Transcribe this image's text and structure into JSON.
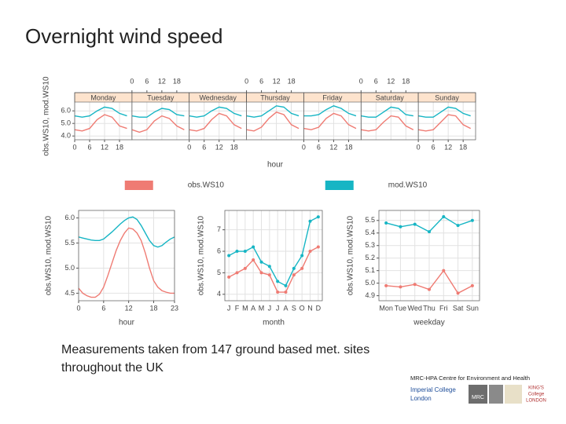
{
  "slide": {
    "title": "Overnight wind speed",
    "caption": [
      "Measurements taken from 147 ground based met. sites",
      "throughout the UK"
    ],
    "credit": "MRC-HPA Centre for Environment and Health",
    "imperial": [
      "Imperial College",
      "London"
    ],
    "mrc": "MRC",
    "kings": [
      "KING'S",
      "College",
      "LONDON"
    ]
  },
  "chart_data": [
    {
      "type": "line",
      "facets": [
        "Monday",
        "Tuesday",
        "Wednesday",
        "Thursday",
        "Friday",
        "Saturday",
        "Sunday"
      ],
      "strip_color": "#fde3cd",
      "x_label": "hour",
      "y_label": "obs.WS10, mod.WS10",
      "x": [
        0,
        3,
        6,
        9,
        12,
        15,
        18,
        21
      ],
      "xlim": [
        0,
        23
      ],
      "xticks": [
        0,
        6,
        12,
        18
      ],
      "ylim": [
        3.7,
        6.7
      ],
      "yticks": [
        {
          "value": 4,
          "label": "4.0"
        },
        {
          "value": 5,
          "label": "5.0"
        },
        {
          "value": 6,
          "label": "6.0"
        }
      ],
      "grid": true,
      "markers": false,
      "legend": "bottom",
      "series": [
        {
          "name": "obs.WS10",
          "color": "#ef7b73",
          "values": [
            [
              4.5,
              4.4,
              4.6,
              5.3,
              5.7,
              5.5,
              4.8,
              4.6
            ],
            [
              4.5,
              4.3,
              4.5,
              5.2,
              5.6,
              5.4,
              4.8,
              4.5
            ],
            [
              4.5,
              4.4,
              4.6,
              5.3,
              5.8,
              5.6,
              4.9,
              4.6
            ],
            [
              4.5,
              4.4,
              4.7,
              5.4,
              5.9,
              5.7,
              4.9,
              4.6
            ],
            [
              4.6,
              4.5,
              4.7,
              5.4,
              5.8,
              5.6,
              4.9,
              4.6
            ],
            [
              4.5,
              4.4,
              4.5,
              5.1,
              5.6,
              5.5,
              4.8,
              4.5
            ],
            [
              4.5,
              4.4,
              4.5,
              5.1,
              5.7,
              5.6,
              4.9,
              4.6
            ]
          ]
        },
        {
          "name": "mod.WS10",
          "color": "#16b5c4",
          "values": [
            [
              5.6,
              5.5,
              5.6,
              6.0,
              6.3,
              6.2,
              5.8,
              5.6
            ],
            [
              5.6,
              5.5,
              5.5,
              5.9,
              6.2,
              6.1,
              5.7,
              5.6
            ],
            [
              5.6,
              5.5,
              5.6,
              6.0,
              6.3,
              6.2,
              5.8,
              5.6
            ],
            [
              5.6,
              5.5,
              5.6,
              6.0,
              6.4,
              6.3,
              5.8,
              5.6
            ],
            [
              5.6,
              5.6,
              5.7,
              6.1,
              6.4,
              6.2,
              5.8,
              5.6
            ],
            [
              5.6,
              5.5,
              5.5,
              5.9,
              6.3,
              6.2,
              5.7,
              5.6
            ],
            [
              5.6,
              5.5,
              5.5,
              5.9,
              6.3,
              6.2,
              5.8,
              5.6
            ]
          ]
        }
      ]
    },
    {
      "type": "line",
      "x_label": "hour",
      "y_label": "obs.WS10, mod.WS10",
      "x": [
        0,
        1,
        2,
        3,
        4,
        5,
        6,
        7,
        8,
        9,
        10,
        11,
        12,
        13,
        14,
        15,
        16,
        17,
        18,
        19,
        20,
        21,
        22,
        23
      ],
      "xlim": [
        0,
        23
      ],
      "xticks": [
        0,
        6,
        12,
        18,
        23
      ],
      "ylim": [
        4.35,
        6.15
      ],
      "yticks": [
        4.5,
        {
          "value": 5,
          "label": "5.0"
        },
        5.5,
        {
          "value": 6,
          "label": "6.0"
        }
      ],
      "grid": true,
      "markers": false,
      "series": [
        {
          "color": "#ef7b73",
          "values": [
            4.6,
            4.5,
            4.45,
            4.42,
            4.42,
            4.48,
            4.62,
            4.85,
            5.1,
            5.35,
            5.55,
            5.7,
            5.8,
            5.78,
            5.7,
            5.55,
            5.3,
            5.0,
            4.75,
            4.62,
            4.55,
            4.52,
            4.5,
            4.5
          ]
        },
        {
          "color": "#16b5c4",
          "values": [
            5.62,
            5.6,
            5.58,
            5.56,
            5.55,
            5.55,
            5.58,
            5.65,
            5.72,
            5.8,
            5.88,
            5.95,
            6.0,
            6.02,
            5.97,
            5.85,
            5.7,
            5.55,
            5.45,
            5.42,
            5.45,
            5.52,
            5.58,
            5.62
          ]
        }
      ]
    },
    {
      "type": "line",
      "x_label": "month",
      "y_label": "obs.WS10, mod.WS10",
      "categories": [
        "J",
        "F",
        "M",
        "A",
        "M",
        "J",
        "J",
        "A",
        "S",
        "O",
        "N",
        "D"
      ],
      "ylim": [
        3.7,
        7.9
      ],
      "yticks": [
        4,
        5,
        6,
        7
      ],
      "grid": true,
      "markers": true,
      "series": [
        {
          "color": "#ef7b73",
          "values": [
            4.8,
            5.0,
            5.2,
            5.6,
            5.0,
            4.9,
            4.1,
            4.1,
            4.9,
            5.2,
            6.0,
            6.2
          ]
        },
        {
          "color": "#16b5c4",
          "values": [
            5.8,
            6.0,
            6.0,
            6.2,
            5.5,
            5.3,
            4.6,
            4.4,
            5.2,
            5.8,
            7.4,
            7.6
          ]
        }
      ]
    },
    {
      "type": "line",
      "x_label": "weekday",
      "y_label": "obs.WS10, mod.WS10",
      "categories": [
        "Mon",
        "Tue",
        "Wed",
        "Thu",
        "Fri",
        "Sat",
        "Sun"
      ],
      "ylim": [
        4.86,
        5.58
      ],
      "yticks": [
        4.9,
        {
          "value": 5,
          "label": "5.0"
        },
        5.1,
        5.2,
        5.3,
        5.4,
        5.5
      ],
      "grid": true,
      "markers": true,
      "series": [
        {
          "color": "#ef7b73",
          "values": [
            4.98,
            4.97,
            4.99,
            4.95,
            5.1,
            4.92,
            4.98
          ]
        },
        {
          "color": "#16b5c4",
          "values": [
            5.48,
            5.45,
            5.47,
            5.41,
            5.53,
            5.46,
            5.5
          ]
        }
      ]
    }
  ]
}
